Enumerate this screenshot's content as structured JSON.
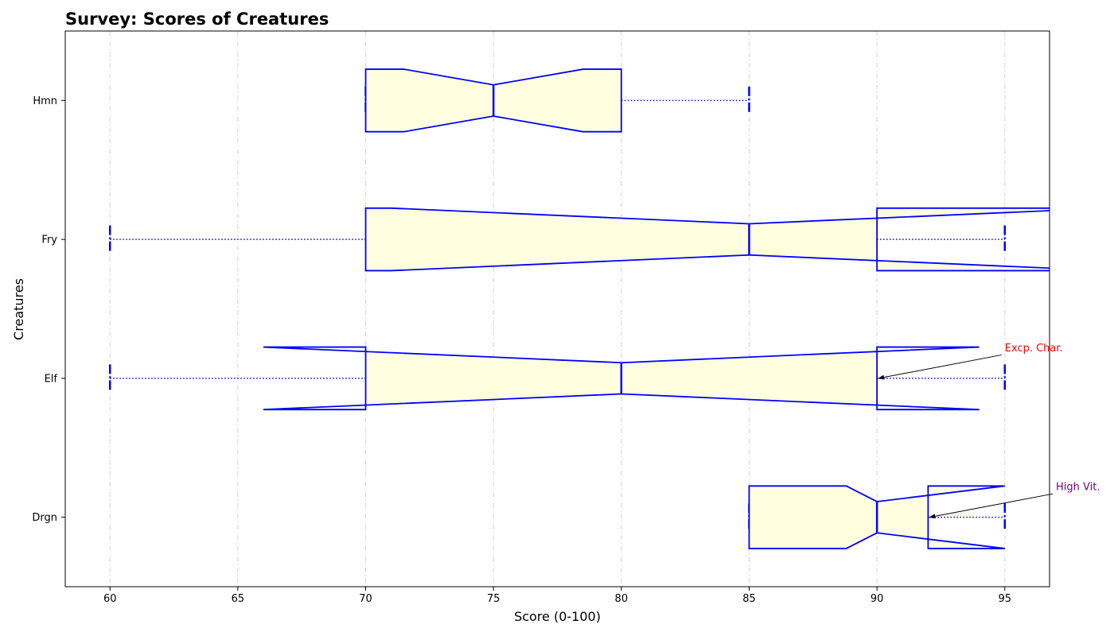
{
  "chart_data": {
    "type": "boxplot",
    "orientation": "horizontal",
    "title": "Survey: Scores of Creatures",
    "xlabel": "Score (0-100)",
    "ylabel": "Creatures",
    "xlim": [
      58.25,
      96.75
    ],
    "x_ticks": [
      60,
      65,
      70,
      75,
      80,
      85,
      90,
      95
    ],
    "grid": {
      "x": true,
      "y": false,
      "style": "dash-dot"
    },
    "notched": true,
    "colors": {
      "box_edge": "#0000ff",
      "box_fill": "#ffffe0",
      "whisker": "#0000ff",
      "grid": "#d3d3d3"
    },
    "categories": [
      "Drgn",
      "Elf",
      "Fry",
      "Hmn"
    ],
    "boxes": [
      {
        "category": "Drgn",
        "whislo": 85,
        "q1": 85,
        "med": 90,
        "q3": 92,
        "whishi": 95,
        "notch_lo": 88.8,
        "notch_hi": 95
      },
      {
        "category": "Elf",
        "whislo": 60,
        "q1": 70,
        "med": 80,
        "q3": 90,
        "whishi": 95,
        "notch_lo": 66,
        "notch_hi": 94
      },
      {
        "category": "Fry",
        "whislo": 60,
        "q1": 70,
        "med": 85,
        "q3": 90,
        "whishi": 95,
        "notch_lo": 71,
        "notch_hi": 99
      },
      {
        "category": "Hmn",
        "whislo": 70,
        "q1": 70,
        "med": 75,
        "q3": 80,
        "whishi": 85,
        "notch_lo": 71.5,
        "notch_hi": 78.5
      }
    ],
    "annotations": [
      {
        "text": "Excp. Char.",
        "category": "Elf",
        "x": 90,
        "text_x": 95,
        "text_dy": 0.22,
        "color": "#ff0000"
      },
      {
        "text": "High Vit.",
        "category": "Drgn",
        "x": 92,
        "text_x": 97,
        "text_dy": 0.22,
        "color": "#800080"
      }
    ]
  }
}
